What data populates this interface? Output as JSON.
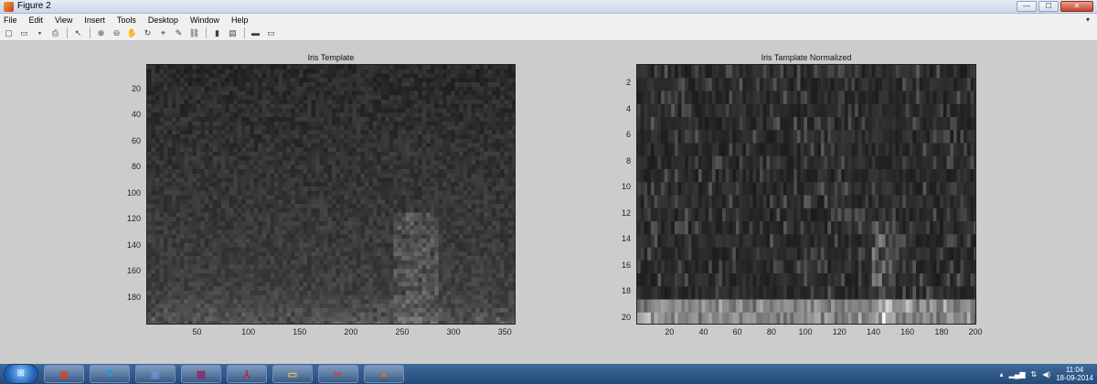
{
  "window": {
    "title": "Figure 2",
    "controls": {
      "minimize": "—",
      "maximize": "☐",
      "close": "✕"
    }
  },
  "menubar": {
    "items": [
      "File",
      "Edit",
      "View",
      "Insert",
      "Tools",
      "Desktop",
      "Window",
      "Help"
    ],
    "overflow": "▾"
  },
  "toolbar": {
    "icons": [
      "new-figure-icon",
      "open-file-icon",
      "save-icon",
      "print-icon",
      "select-arrow-icon",
      "zoom-in-icon",
      "zoom-out-icon",
      "pan-hand-icon",
      "rotate-3d-icon",
      "data-cursor-icon",
      "brush-icon",
      "link-plot-icon",
      "colorbar-icon",
      "legend-icon",
      "hide-plot-tools-icon",
      "show-plot-tools-icon"
    ],
    "glyphs": [
      "▢",
      "▭",
      "▪",
      "⎙",
      "↖",
      "⊕",
      "⊖",
      "✋",
      "↻",
      "⌖",
      "✎",
      "⛓",
      "▮",
      "▤",
      "▬",
      "▭"
    ]
  },
  "chart_data": [
    {
      "type": "heatmap",
      "title": "Iris Template",
      "x_ticks": [
        50,
        100,
        150,
        200,
        250,
        300,
        350
      ],
      "y_ticks": [
        20,
        40,
        60,
        80,
        100,
        120,
        140,
        160,
        180
      ],
      "xlim": [
        0.5,
        360.5
      ],
      "ylim": [
        0.5,
        200.5
      ],
      "y_reversed": true,
      "colormap": "gray",
      "xlabel": "",
      "ylabel": ""
    },
    {
      "type": "heatmap",
      "title": "Iris Tamplate Normalized",
      "x_ticks": [
        20,
        40,
        60,
        80,
        100,
        120,
        140,
        160,
        180,
        200
      ],
      "y_ticks": [
        2,
        4,
        6,
        8,
        10,
        12,
        14,
        16,
        18,
        20
      ],
      "xlim": [
        0.5,
        200.5
      ],
      "ylim": [
        0.5,
        20.5
      ],
      "y_reversed": true,
      "colormap": "gray",
      "xlabel": "",
      "ylabel": ""
    }
  ],
  "taskbar": {
    "start_label": "⊞",
    "buttons": [
      {
        "name": "chrome-icon",
        "glyph": "◉",
        "color": "#d9452e"
      },
      {
        "name": "skype-icon",
        "glyph": "S",
        "color": "#1d9ad6"
      },
      {
        "name": "picture-viewer-icon",
        "glyph": "▣",
        "color": "#6b8fc8"
      },
      {
        "name": "winrar-icon",
        "glyph": "▦",
        "color": "#8a2c6e"
      },
      {
        "name": "adobe-reader-icon",
        "glyph": "⅄",
        "color": "#c8201e"
      },
      {
        "name": "file-explorer-icon",
        "glyph": "▭",
        "color": "#e7c25a"
      },
      {
        "name": "snipping-tool-icon",
        "glyph": "✂",
        "color": "#c84040"
      },
      {
        "name": "matlab-icon",
        "glyph": "▲",
        "color": "#e26a1e"
      }
    ],
    "clock_time": "11:04",
    "clock_date": "18-09-2014"
  }
}
